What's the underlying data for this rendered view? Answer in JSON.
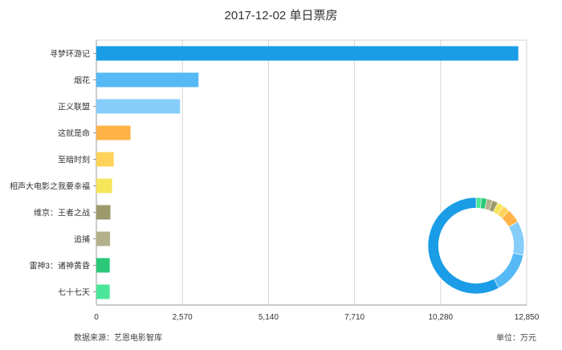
{
  "chart_data": {
    "type": "bar",
    "orientation": "horizontal",
    "title": "2017-12-02 单日票房",
    "categories": [
      "寻梦环游记",
      "烟花",
      "正义联盟",
      "这就是命",
      "至暗时刻",
      "相声大电影之我要幸福",
      "维京：王者之战",
      "追捕",
      "雷神3：诸神黄昏",
      "七十七天"
    ],
    "values": [
      12600,
      3050,
      2500,
      1020,
      520,
      470,
      420,
      410,
      400,
      400
    ],
    "bar_colors": [
      "#1a9de6",
      "#54b9f5",
      "#86cdfa",
      "#ffb347",
      "#ffd35a",
      "#f5e65a",
      "#9c9a6c",
      "#b3b18c",
      "#2ac877",
      "#4ce69a"
    ],
    "xlim": [
      0,
      12850
    ],
    "xticks": [
      "0",
      "2,570",
      "5,140",
      "7,710",
      "10,280",
      "12,850"
    ],
    "grid": true,
    "donut": {
      "type": "pie",
      "inner_ratio": 0.78,
      "values": [
        12600,
        3050,
        2500,
        1020,
        520,
        470,
        420,
        410,
        400,
        400
      ]
    }
  },
  "footer": {
    "source": "数据来源：艺恩电影智库",
    "unit": "单位：万元"
  }
}
